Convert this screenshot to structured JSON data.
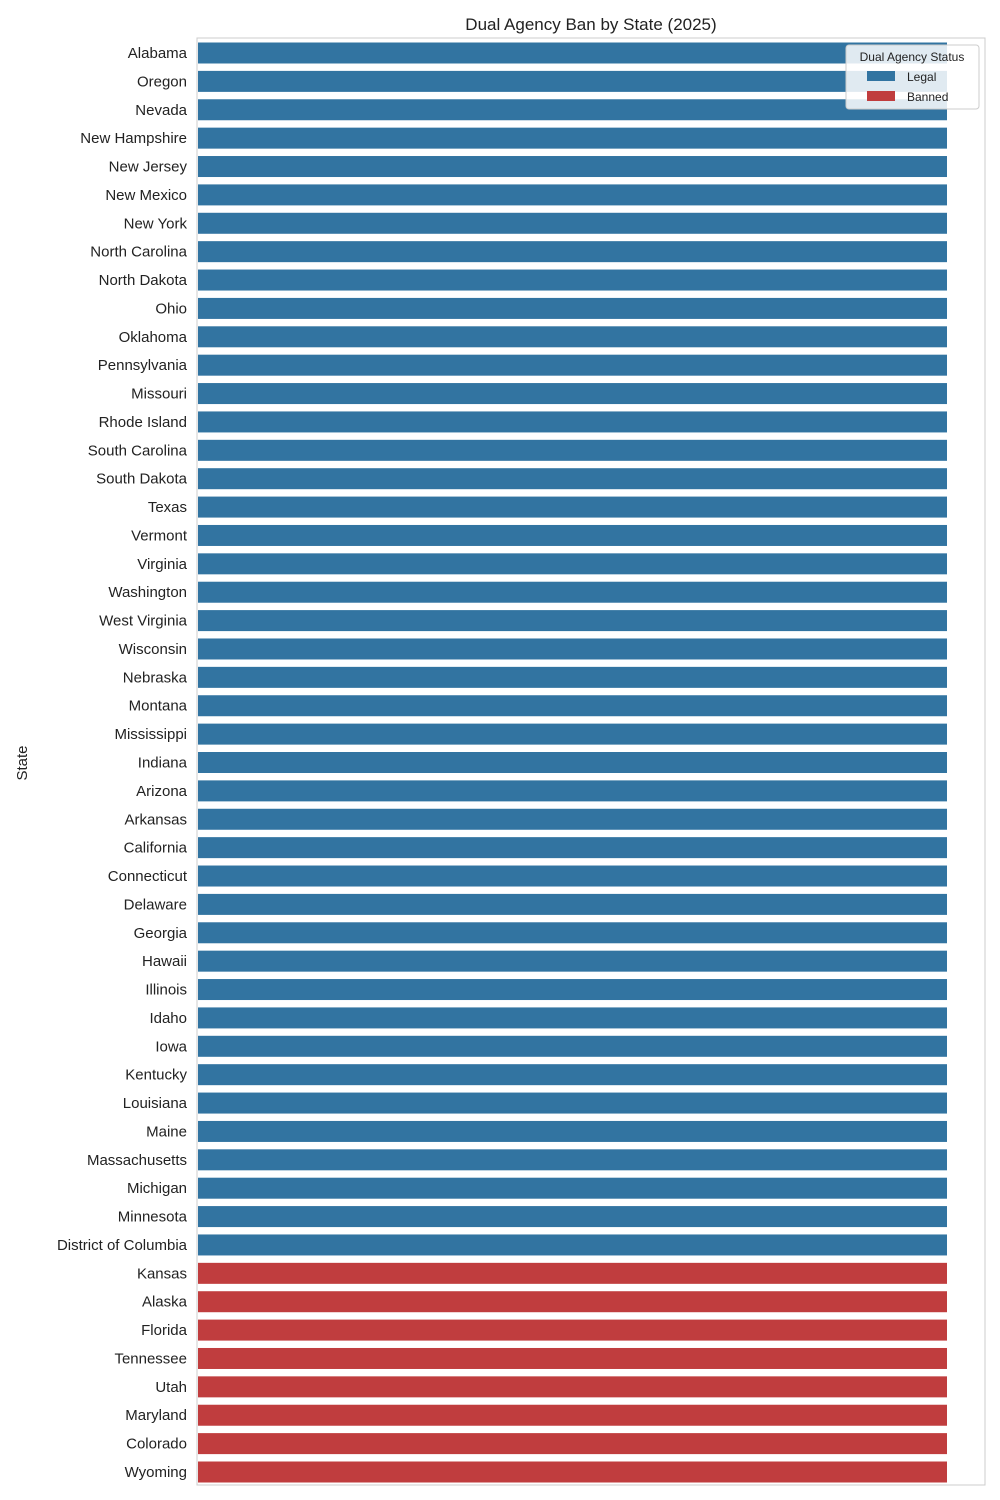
{
  "chart_data": {
    "type": "bar",
    "orientation": "horizontal",
    "title": "Dual Agency Ban by State (2025)",
    "xlabel": "",
    "ylabel": "State",
    "xlim": [
      0,
      1
    ],
    "grid": false,
    "legend": {
      "title": "Dual Agency Status",
      "placement": "top-right",
      "entries": [
        {
          "label": "Legal",
          "color": "#3274a1"
        },
        {
          "label": "Banned",
          "color": "#c03d3e"
        }
      ]
    },
    "categories": [
      "Alabama",
      "Oregon",
      "Nevada",
      "New Hampshire",
      "New Jersey",
      "New Mexico",
      "New York",
      "North Carolina",
      "North Dakota",
      "Ohio",
      "Oklahoma",
      "Pennsylvania",
      "Missouri",
      "Rhode Island",
      "South Carolina",
      "South Dakota",
      "Texas",
      "Vermont",
      "Virginia",
      "Washington",
      "West Virginia",
      "Wisconsin",
      "Nebraska",
      "Montana",
      "Mississippi",
      "Indiana",
      "Arizona",
      "Arkansas",
      "California",
      "Connecticut",
      "Delaware",
      "Georgia",
      "Hawaii",
      "Illinois",
      "Idaho",
      "Iowa",
      "Kentucky",
      "Louisiana",
      "Maine",
      "Massachusetts",
      "Michigan",
      "Minnesota",
      "District of Columbia",
      "Kansas",
      "Alaska",
      "Florida",
      "Tennessee",
      "Utah",
      "Maryland",
      "Colorado",
      "Wyoming"
    ],
    "values": [
      1,
      1,
      1,
      1,
      1,
      1,
      1,
      1,
      1,
      1,
      1,
      1,
      1,
      1,
      1,
      1,
      1,
      1,
      1,
      1,
      1,
      1,
      1,
      1,
      1,
      1,
      1,
      1,
      1,
      1,
      1,
      1,
      1,
      1,
      1,
      1,
      1,
      1,
      1,
      1,
      1,
      1,
      1,
      1,
      1,
      1,
      1,
      1,
      1,
      1,
      1
    ],
    "status": [
      "Legal",
      "Legal",
      "Legal",
      "Legal",
      "Legal",
      "Legal",
      "Legal",
      "Legal",
      "Legal",
      "Legal",
      "Legal",
      "Legal",
      "Legal",
      "Legal",
      "Legal",
      "Legal",
      "Legal",
      "Legal",
      "Legal",
      "Legal",
      "Legal",
      "Legal",
      "Legal",
      "Legal",
      "Legal",
      "Legal",
      "Legal",
      "Legal",
      "Legal",
      "Legal",
      "Legal",
      "Legal",
      "Legal",
      "Legal",
      "Legal",
      "Legal",
      "Legal",
      "Legal",
      "Legal",
      "Legal",
      "Legal",
      "Legal",
      "Legal",
      "Banned",
      "Banned",
      "Banned",
      "Banned",
      "Banned",
      "Banned",
      "Banned",
      "Banned"
    ]
  }
}
